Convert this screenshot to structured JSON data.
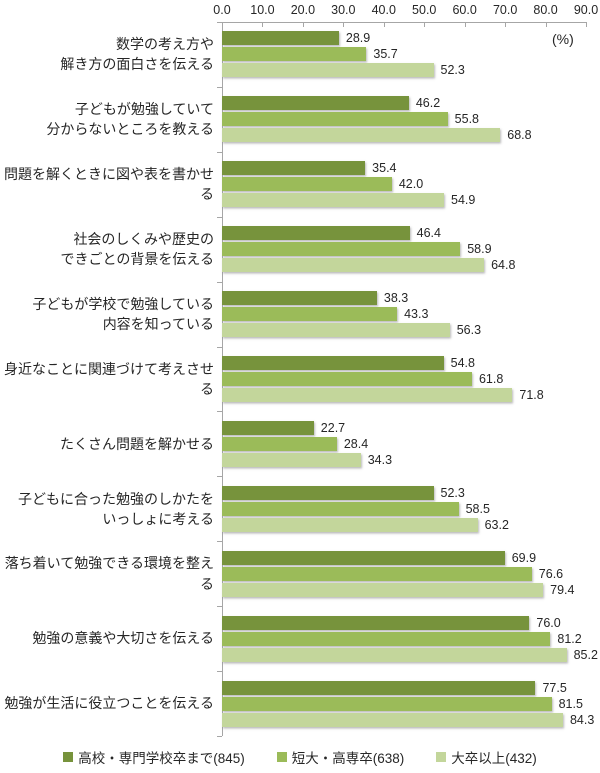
{
  "chart_data": {
    "type": "bar",
    "orientation": "horizontal-grouped",
    "title": "",
    "unit_label": "(%)",
    "x_axis": {
      "min": 0,
      "max": 90,
      "tick_step": 10,
      "tick_labels": [
        "0.0",
        "10.0",
        "20.0",
        "30.0",
        "40.0",
        "50.0",
        "60.0",
        "70.0",
        "80.0",
        "90.0"
      ]
    },
    "grid": false,
    "legend_position": "bottom",
    "categories": [
      "数学の考え方や\n解き方の面白さを伝える",
      "子どもが勉強していて\n分からないところを教える",
      "問題を解くときに図や表を書かせる",
      "社会のしくみや歴史の\nできごとの背景を伝える",
      "子どもが学校で勉強している\n内容を知っている",
      "身近なことに関連づけて考えさせる",
      "たくさん問題を解かせる",
      "子どもに合った勉強のしかたを\nいっしょに考える",
      "落ち着いて勉強できる環境を整える",
      "勉強の意義や大切さを伝える",
      "勉強が生活に役立つことを伝える"
    ],
    "series": [
      {
        "name": "高校・専門学校卒まで(845)",
        "color": "#77933C",
        "values": [
          28.9,
          46.2,
          35.4,
          46.4,
          38.3,
          54.8,
          22.7,
          52.3,
          69.9,
          76.0,
          77.5
        ]
      },
      {
        "name": "短大・高専卒(638)",
        "color": "#9BBB59",
        "values": [
          35.7,
          55.8,
          42.0,
          58.9,
          43.3,
          61.8,
          28.4,
          58.5,
          76.6,
          81.2,
          81.5
        ]
      },
      {
        "name": "大卒以上(432)",
        "color": "#C3D69B",
        "values": [
          52.3,
          68.8,
          54.9,
          64.8,
          56.3,
          71.8,
          34.3,
          63.2,
          79.4,
          85.2,
          84.3
        ]
      }
    ],
    "colors": {
      "axis_line": "#a6a6a6",
      "text": "#262626"
    }
  }
}
